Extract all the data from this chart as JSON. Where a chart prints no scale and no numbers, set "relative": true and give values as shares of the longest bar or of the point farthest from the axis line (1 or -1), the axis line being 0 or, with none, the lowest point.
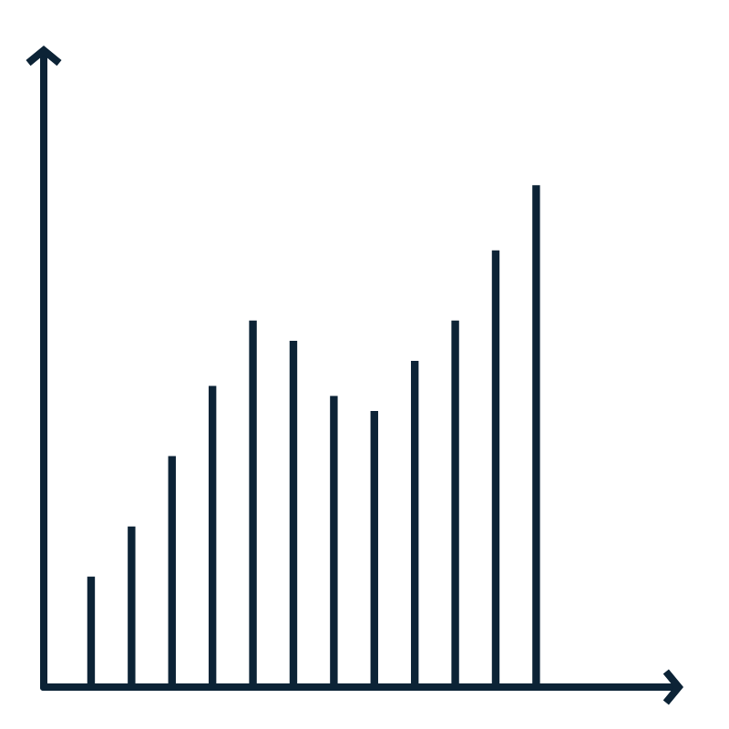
{
  "chart_data": {
    "type": "bar",
    "relative": true,
    "color": "#0c2336",
    "categories": [
      null,
      null,
      null,
      null,
      null,
      null,
      null,
      null,
      null,
      null,
      null,
      null
    ],
    "values": [
      0.22,
      0.32,
      0.46,
      0.6,
      0.73,
      0.69,
      0.58,
      0.55,
      0.65,
      0.73,
      0.87,
      1
    ]
  }
}
